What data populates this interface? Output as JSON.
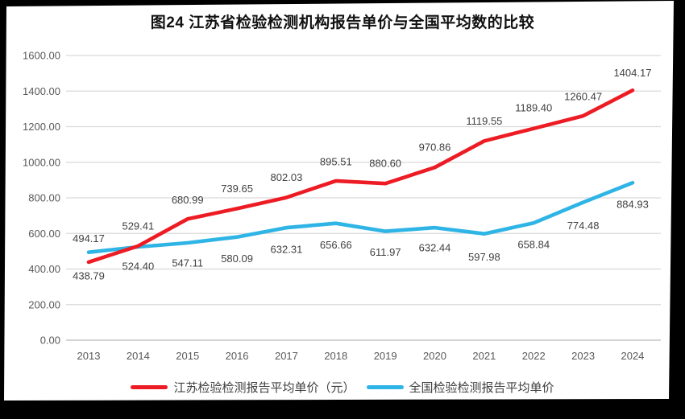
{
  "colors": {
    "jiangsu_red": "#ed1c24",
    "national_blue": "#2fb4e6",
    "grid": "#d9d9d9",
    "axis_line": "#c6c6c6",
    "axis_text": "#595959",
    "data_label": "#404040",
    "title_text": "#111111",
    "page_bg": "#ffffff",
    "frame_bg": "#000000"
  },
  "chart_data": {
    "type": "line",
    "title": "图24   江苏省检验检测机构报告单价与全国平均数的比较",
    "categories": [
      "2013",
      "2014",
      "2015",
      "2016",
      "2017",
      "2018",
      "2019",
      "2020",
      "2021",
      "2022",
      "2023",
      "2024"
    ],
    "series": [
      {
        "name": "江苏检验检测报告平均单价（元）",
        "color": "#ed1c24",
        "values": [
          438.79,
          529.41,
          680.99,
          739.65,
          802.03,
          895.51,
          880.6,
          970.86,
          1119.55,
          1189.4,
          1260.47,
          1404.17
        ]
      },
      {
        "name": "全国检验检测报告平均单价",
        "color": "#2fb4e6",
        "values": [
          494.17,
          524.4,
          547.11,
          580.09,
          632.31,
          656.66,
          611.97,
          632.44,
          597.98,
          658.84,
          774.48,
          884.93
        ]
      }
    ],
    "xlabel": "",
    "ylabel": "",
    "ylim": [
      0,
      1600
    ],
    "ytick_labels": [
      "0.00",
      "200.00",
      "400.00",
      "600.00",
      "800.00",
      "1000.00",
      "1200.00",
      "1400.00",
      "1600.00"
    ],
    "grid": true,
    "data_labels": true,
    "legend_position": "bottom",
    "label_dy": [
      [
        17,
        -25,
        -24,
        -25,
        -25,
        -24,
        -25,
        -25,
        -25,
        -26,
        -24,
        -22
      ],
      [
        -17,
        24,
        25,
        27,
        27,
        27,
        26,
        25,
        29,
        27,
        29,
        27
      ]
    ]
  }
}
